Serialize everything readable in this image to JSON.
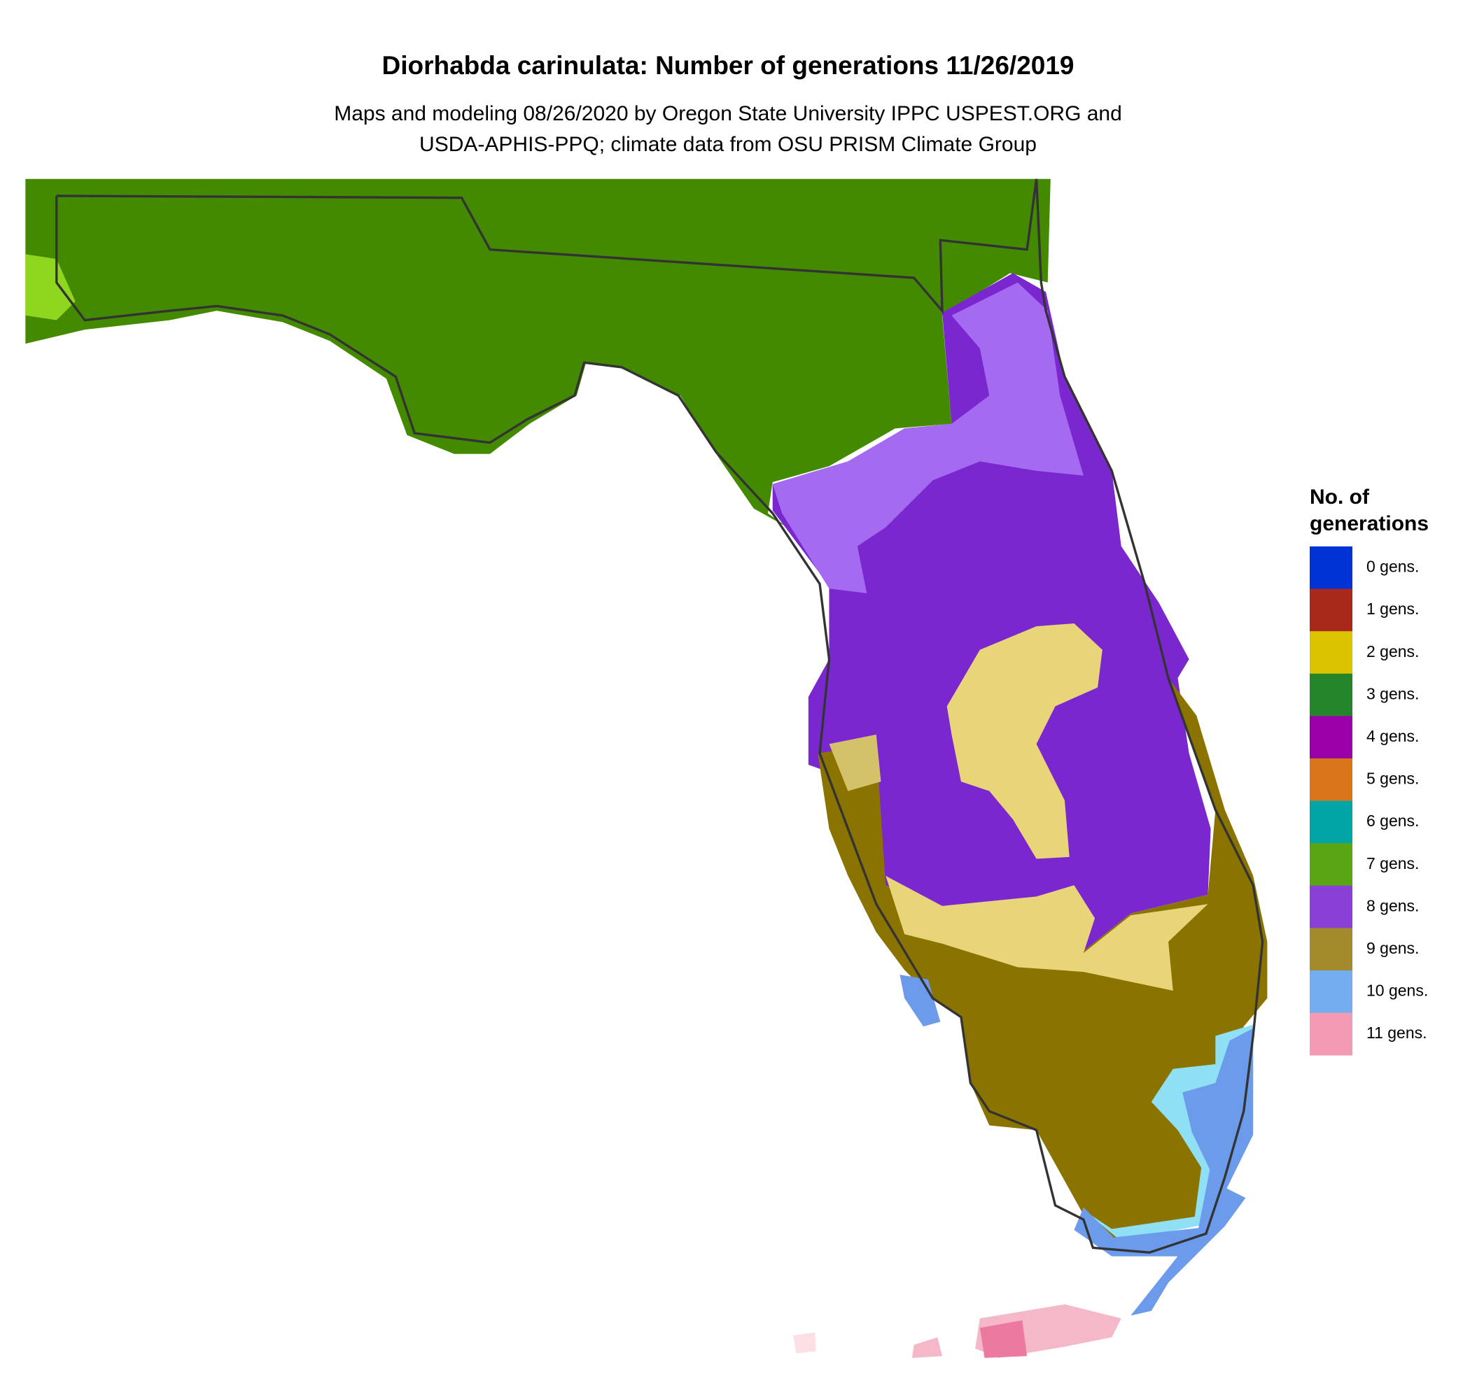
{
  "header": {
    "title": "Diorhabda carinulata: Number of generations 11/26/2019",
    "subtitle": [
      "Maps and modeling 08/26/2020 by Oregon State University IPPC USPEST.ORG and",
      "USDA-APHIS-PPQ; climate data from OSU PRISM Climate Group"
    ]
  },
  "legend": {
    "title": [
      "No. of",
      "generations"
    ],
    "items": [
      {
        "label": "0 gens.",
        "color": "#0033d6"
      },
      {
        "label": "1 gens.",
        "color": "#a8281a"
      },
      {
        "label": "2 gens.",
        "color": "#dcc300"
      },
      {
        "label": "3 gens.",
        "color": "#25852b"
      },
      {
        "label": "4 gens.",
        "color": "#9c00a8"
      },
      {
        "label": "5 gens.",
        "color": "#d9761a"
      },
      {
        "label": "6 gens.",
        "color": "#00a6a6"
      },
      {
        "label": "7 gens.",
        "color": "#5aa514"
      },
      {
        "label": "8 gens.",
        "color": "#8a3fd6"
      },
      {
        "label": "9 gens.",
        "color": "#a38a2a"
      },
      {
        "label": "10 gens.",
        "color": "#74aef0"
      },
      {
        "label": "11 gens.",
        "color": "#f39ab4"
      }
    ]
  }
}
